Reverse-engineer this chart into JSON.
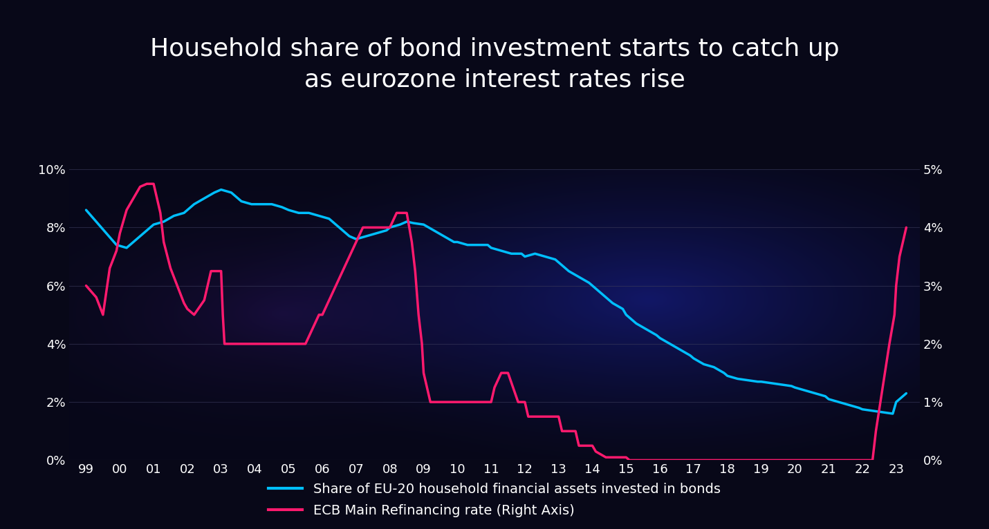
{
  "title": "Household share of bond investment starts to catch up\nas eurozone interest rates rise",
  "title_fontsize": 26,
  "title_color": "#ffffff",
  "background_color": "#080818",
  "plot_bg_color": "#080818",
  "x_labels": [
    "99",
    "00",
    "01",
    "02",
    "03",
    "04",
    "05",
    "06",
    "07",
    "08",
    "09",
    "10",
    "11",
    "12",
    "13",
    "14",
    "15",
    "16",
    "17",
    "18",
    "19",
    "20",
    "21",
    "22",
    "23"
  ],
  "blue_line": {
    "label": "Share of EU-20 household financial assets invested in bonds",
    "color": "#00bfff",
    "linewidth": 2.5,
    "data": [
      [
        1999.0,
        8.6
      ],
      [
        1999.3,
        8.2
      ],
      [
        1999.6,
        7.8
      ],
      [
        1999.9,
        7.4
      ],
      [
        2000.2,
        7.3
      ],
      [
        2000.5,
        7.6
      ],
      [
        2000.8,
        7.9
      ],
      [
        2001.0,
        8.1
      ],
      [
        2001.3,
        8.2
      ],
      [
        2001.6,
        8.4
      ],
      [
        2001.9,
        8.5
      ],
      [
        2002.2,
        8.8
      ],
      [
        2002.5,
        9.0
      ],
      [
        2002.8,
        9.2
      ],
      [
        2003.0,
        9.3
      ],
      [
        2003.3,
        9.2
      ],
      [
        2003.6,
        8.9
      ],
      [
        2003.9,
        8.8
      ],
      [
        2004.2,
        8.8
      ],
      [
        2004.5,
        8.8
      ],
      [
        2004.8,
        8.7
      ],
      [
        2005.0,
        8.6
      ],
      [
        2005.3,
        8.5
      ],
      [
        2005.6,
        8.5
      ],
      [
        2005.9,
        8.4
      ],
      [
        2006.2,
        8.3
      ],
      [
        2006.5,
        8.0
      ],
      [
        2006.8,
        7.7
      ],
      [
        2007.0,
        7.6
      ],
      [
        2007.3,
        7.7
      ],
      [
        2007.6,
        7.8
      ],
      [
        2007.9,
        7.9
      ],
      [
        2008.0,
        8.0
      ],
      [
        2008.3,
        8.1
      ],
      [
        2008.5,
        8.2
      ],
      [
        2008.7,
        8.15
      ],
      [
        2009.0,
        8.1
      ],
      [
        2009.3,
        7.9
      ],
      [
        2009.6,
        7.7
      ],
      [
        2009.9,
        7.5
      ],
      [
        2010.0,
        7.5
      ],
      [
        2010.3,
        7.4
      ],
      [
        2010.6,
        7.4
      ],
      [
        2010.9,
        7.4
      ],
      [
        2011.0,
        7.3
      ],
      [
        2011.3,
        7.2
      ],
      [
        2011.6,
        7.1
      ],
      [
        2011.9,
        7.1
      ],
      [
        2012.0,
        7.0
      ],
      [
        2012.3,
        7.1
      ],
      [
        2012.6,
        7.0
      ],
      [
        2012.9,
        6.9
      ],
      [
        2013.0,
        6.8
      ],
      [
        2013.3,
        6.5
      ],
      [
        2013.6,
        6.3
      ],
      [
        2013.9,
        6.1
      ],
      [
        2014.0,
        6.0
      ],
      [
        2014.3,
        5.7
      ],
      [
        2014.6,
        5.4
      ],
      [
        2014.9,
        5.2
      ],
      [
        2015.0,
        5.0
      ],
      [
        2015.3,
        4.7
      ],
      [
        2015.6,
        4.5
      ],
      [
        2015.9,
        4.3
      ],
      [
        2016.0,
        4.2
      ],
      [
        2016.3,
        4.0
      ],
      [
        2016.6,
        3.8
      ],
      [
        2016.9,
        3.6
      ],
      [
        2017.0,
        3.5
      ],
      [
        2017.3,
        3.3
      ],
      [
        2017.6,
        3.2
      ],
      [
        2017.9,
        3.0
      ],
      [
        2018.0,
        2.9
      ],
      [
        2018.3,
        2.8
      ],
      [
        2018.6,
        2.75
      ],
      [
        2018.9,
        2.7
      ],
      [
        2019.0,
        2.7
      ],
      [
        2019.3,
        2.65
      ],
      [
        2019.6,
        2.6
      ],
      [
        2019.9,
        2.55
      ],
      [
        2020.0,
        2.5
      ],
      [
        2020.3,
        2.4
      ],
      [
        2020.6,
        2.3
      ],
      [
        2020.9,
        2.2
      ],
      [
        2021.0,
        2.1
      ],
      [
        2021.3,
        2.0
      ],
      [
        2021.6,
        1.9
      ],
      [
        2021.9,
        1.8
      ],
      [
        2022.0,
        1.75
      ],
      [
        2022.3,
        1.7
      ],
      [
        2022.6,
        1.65
      ],
      [
        2022.9,
        1.6
      ],
      [
        2023.0,
        2.0
      ],
      [
        2023.3,
        2.3
      ]
    ]
  },
  "red_line": {
    "label": "ECB Main Refinancing rate (Right Axis)",
    "color": "#ff1a6e",
    "linewidth": 2.5,
    "data": [
      [
        1999.0,
        3.0
      ],
      [
        1999.3,
        2.8
      ],
      [
        1999.5,
        2.5
      ],
      [
        1999.7,
        3.3
      ],
      [
        1999.9,
        3.6
      ],
      [
        2000.0,
        3.9
      ],
      [
        2000.2,
        4.3
      ],
      [
        2000.4,
        4.5
      ],
      [
        2000.6,
        4.7
      ],
      [
        2000.8,
        4.75
      ],
      [
        2001.0,
        4.75
      ],
      [
        2001.1,
        4.5
      ],
      [
        2001.2,
        4.25
      ],
      [
        2001.3,
        3.75
      ],
      [
        2001.5,
        3.3
      ],
      [
        2001.7,
        3.0
      ],
      [
        2001.9,
        2.7
      ],
      [
        2002.0,
        2.6
      ],
      [
        2002.2,
        2.5
      ],
      [
        2002.5,
        2.75
      ],
      [
        2002.7,
        3.25
      ],
      [
        2002.9,
        3.25
      ],
      [
        2003.0,
        3.25
      ],
      [
        2003.05,
        2.5
      ],
      [
        2003.1,
        2.0
      ],
      [
        2003.3,
        2.0
      ],
      [
        2003.5,
        2.0
      ],
      [
        2003.7,
        2.0
      ],
      [
        2004.0,
        2.0
      ],
      [
        2004.2,
        2.0
      ],
      [
        2004.5,
        2.0
      ],
      [
        2004.7,
        2.0
      ],
      [
        2005.0,
        2.0
      ],
      [
        2005.2,
        2.0
      ],
      [
        2005.5,
        2.0
      ],
      [
        2005.7,
        2.25
      ],
      [
        2005.9,
        2.5
      ],
      [
        2006.0,
        2.5
      ],
      [
        2006.2,
        2.75
      ],
      [
        2006.4,
        3.0
      ],
      [
        2006.6,
        3.25
      ],
      [
        2006.8,
        3.5
      ],
      [
        2007.0,
        3.75
      ],
      [
        2007.2,
        4.0
      ],
      [
        2007.5,
        4.0
      ],
      [
        2007.7,
        4.0
      ],
      [
        2007.9,
        4.0
      ],
      [
        2008.0,
        4.0
      ],
      [
        2008.2,
        4.25
      ],
      [
        2008.3,
        4.25
      ],
      [
        2008.5,
        4.25
      ],
      [
        2008.65,
        3.75
      ],
      [
        2008.75,
        3.25
      ],
      [
        2008.85,
        2.5
      ],
      [
        2008.95,
        2.0
      ],
      [
        2009.0,
        1.5
      ],
      [
        2009.1,
        1.25
      ],
      [
        2009.2,
        1.0
      ],
      [
        2009.3,
        1.0
      ],
      [
        2009.5,
        1.0
      ],
      [
        2009.7,
        1.0
      ],
      [
        2009.9,
        1.0
      ],
      [
        2010.0,
        1.0
      ],
      [
        2010.2,
        1.0
      ],
      [
        2010.5,
        1.0
      ],
      [
        2010.7,
        1.0
      ],
      [
        2011.0,
        1.0
      ],
      [
        2011.1,
        1.25
      ],
      [
        2011.3,
        1.5
      ],
      [
        2011.5,
        1.5
      ],
      [
        2011.65,
        1.25
      ],
      [
        2011.8,
        1.0
      ],
      [
        2012.0,
        1.0
      ],
      [
        2012.1,
        0.75
      ],
      [
        2012.5,
        0.75
      ],
      [
        2012.7,
        0.75
      ],
      [
        2012.9,
        0.75
      ],
      [
        2013.0,
        0.75
      ],
      [
        2013.1,
        0.5
      ],
      [
        2013.5,
        0.5
      ],
      [
        2013.6,
        0.25
      ],
      [
        2013.9,
        0.25
      ],
      [
        2014.0,
        0.25
      ],
      [
        2014.1,
        0.15
      ],
      [
        2014.4,
        0.05
      ],
      [
        2014.7,
        0.05
      ],
      [
        2014.9,
        0.05
      ],
      [
        2015.0,
        0.05
      ],
      [
        2015.1,
        0.0
      ],
      [
        2015.5,
        0.0
      ],
      [
        2015.7,
        0.0
      ],
      [
        2016.0,
        0.0
      ],
      [
        2016.5,
        0.0
      ],
      [
        2017.0,
        0.0
      ],
      [
        2017.5,
        0.0
      ],
      [
        2018.0,
        0.0
      ],
      [
        2018.5,
        0.0
      ],
      [
        2019.0,
        0.0
      ],
      [
        2019.5,
        0.0
      ],
      [
        2020.0,
        0.0
      ],
      [
        2020.5,
        0.0
      ],
      [
        2021.0,
        0.0
      ],
      [
        2021.5,
        0.0
      ],
      [
        2022.0,
        0.0
      ],
      [
        2022.3,
        0.0
      ],
      [
        2022.4,
        0.5
      ],
      [
        2022.6,
        1.25
      ],
      [
        2022.8,
        2.0
      ],
      [
        2022.95,
        2.5
      ],
      [
        2023.0,
        3.0
      ],
      [
        2023.1,
        3.5
      ],
      [
        2023.2,
        3.75
      ],
      [
        2023.3,
        4.0
      ]
    ]
  },
  "left_yticks": [
    0,
    2,
    4,
    6,
    8,
    10
  ],
  "left_ylabels": [
    "0%",
    "2%",
    "4%",
    "6%",
    "8%",
    "10%"
  ],
  "left_ylim": [
    0,
    10
  ],
  "right_yticks": [
    0,
    1,
    2,
    3,
    4,
    5
  ],
  "right_ylabels": [
    "0%",
    "1%",
    "2%",
    "3%",
    "4%",
    "5%"
  ],
  "right_ylim": [
    0,
    5
  ],
  "grid_color": "#3a3a5a",
  "grid_alpha": 0.6,
  "tick_color": "#ffffff",
  "tick_fontsize": 13,
  "legend_fontsize": 14,
  "legend_text_color": "#ffffff"
}
